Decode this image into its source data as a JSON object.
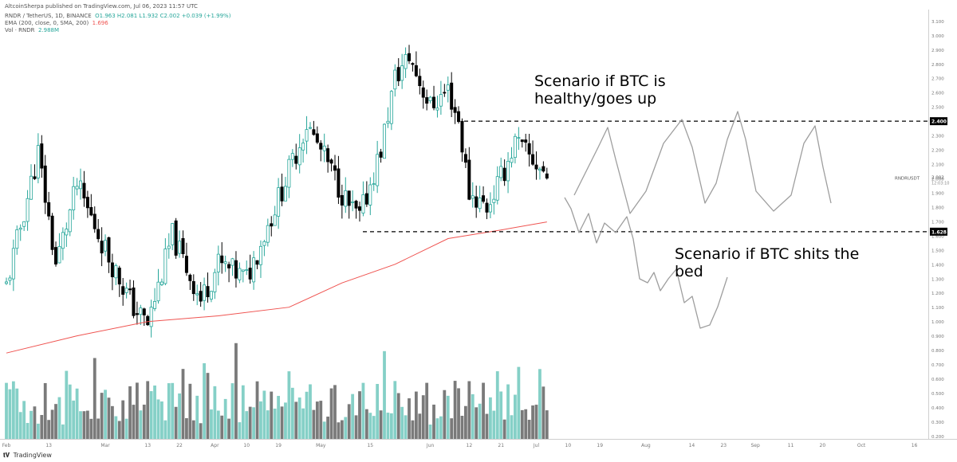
{
  "header": {
    "publisher": "AltcoinSherpa published on TradingView.com, Jul 06, 2023 11:57 UTC",
    "symbol": "RNDR / TetherUS, 1D, BINANCE",
    "ohlc": "O1.963 H2.081 L1.932 C2.002 +0.039 (+1.99%)",
    "ema_label": "EMA (200, close, 0, SMA, 200)",
    "ema_value": "1.696",
    "vol_label": "Vol · RNDR",
    "vol_value": "2.988M"
  },
  "annotations": {
    "top_line1": "Scenario if BTC is",
    "top_line2": "healthy/goes up",
    "bottom_line1": "Scenario if BTC shits the",
    "bottom_line2": "bed"
  },
  "footer": {
    "brand": "TradingView"
  },
  "chart_data": {
    "type": "candlestick",
    "title": "RNDR / TetherUS, 1D, BINANCE",
    "y_ticks": [
      "3.100",
      "3.000",
      "2.900",
      "2.800",
      "2.700",
      "2.600",
      "2.500",
      "2.400",
      "2.300",
      "2.200",
      "2.100",
      "2.000",
      "1.900",
      "1.800",
      "1.700",
      "1.600",
      "1.500",
      "1.400",
      "1.300",
      "1.200",
      "1.100",
      "1.000",
      "0.900",
      "0.800",
      "0.700",
      "0.600",
      "0.500",
      "0.400",
      "0.300",
      "0.200"
    ],
    "ylim": [
      0.18,
      3.18
    ],
    "x_ticks": [
      {
        "label": "Feb",
        "day": 0
      },
      {
        "label": "13",
        "day": 12
      },
      {
        "label": "Mar",
        "day": 28
      },
      {
        "label": "13",
        "day": 40
      },
      {
        "label": "22",
        "day": 49
      },
      {
        "label": "Apr",
        "day": 59
      },
      {
        "label": "10",
        "day": 68
      },
      {
        "label": "19",
        "day": 77
      },
      {
        "label": "May",
        "day": 89
      },
      {
        "label": "15",
        "day": 103
      },
      {
        "label": "Jun",
        "day": 120
      },
      {
        "label": "12",
        "day": 131
      },
      {
        "label": "21",
        "day": 140
      },
      {
        "label": "Jul",
        "day": 150
      },
      {
        "label": "10",
        "day": 159
      },
      {
        "label": "19",
        "day": 168
      },
      {
        "label": "Aug",
        "day": 181
      },
      {
        "label": "14",
        "day": 194
      },
      {
        "label": "23",
        "day": 203
      },
      {
        "label": "Sep",
        "day": 212
      },
      {
        "label": "11",
        "day": 222
      },
      {
        "label": "20",
        "day": 231
      },
      {
        "label": "Oct",
        "day": 242
      },
      {
        "label": "16",
        "day": 257
      }
    ],
    "price_labels": [
      {
        "label": "2.400",
        "value": 2.4
      },
      {
        "label": "1.628",
        "value": 1.628
      }
    ],
    "current_price": {
      "label": "RNDRUSDT",
      "value": "2.002",
      "countdown": "12:03:10"
    },
    "key_points": [
      {
        "day": 0,
        "price": 1.25
      },
      {
        "day": 9,
        "price": 2.18
      },
      {
        "day": 14,
        "price": 1.4
      },
      {
        "day": 20,
        "price": 1.95
      },
      {
        "day": 29,
        "price": 1.45
      },
      {
        "day": 36,
        "price": 1.1
      },
      {
        "day": 40,
        "price": 0.98
      },
      {
        "day": 47,
        "price": 1.6
      },
      {
        "day": 55,
        "price": 1.15
      },
      {
        "day": 60,
        "price": 1.4
      },
      {
        "day": 68,
        "price": 1.3
      },
      {
        "day": 80,
        "price": 2.05
      },
      {
        "day": 85,
        "price": 2.38
      },
      {
        "day": 92,
        "price": 2.05
      },
      {
        "day": 97,
        "price": 1.8
      },
      {
        "day": 100,
        "price": 1.72
      },
      {
        "day": 106,
        "price": 2.2
      },
      {
        "day": 110,
        "price": 2.7
      },
      {
        "day": 114,
        "price": 2.85
      },
      {
        "day": 120,
        "price": 2.5
      },
      {
        "day": 125,
        "price": 2.62
      },
      {
        "day": 128,
        "price": 2.4
      },
      {
        "day": 131,
        "price": 1.9
      },
      {
        "day": 136,
        "price": 1.8
      },
      {
        "day": 140,
        "price": 2.0
      },
      {
        "day": 144,
        "price": 2.25
      },
      {
        "day": 150,
        "price": 2.1
      },
      {
        "day": 153,
        "price": 2.02
      }
    ],
    "ema_points": [
      {
        "day": 0,
        "value": 0.78
      },
      {
        "day": 20,
        "value": 0.9
      },
      {
        "day": 40,
        "value": 1.0
      },
      {
        "day": 60,
        "value": 1.04
      },
      {
        "day": 80,
        "value": 1.1
      },
      {
        "day": 95,
        "value": 1.27
      },
      {
        "day": 110,
        "value": 1.4
      },
      {
        "day": 125,
        "value": 1.58
      },
      {
        "day": 140,
        "value": 1.64
      },
      {
        "day": 153,
        "value": 1.696
      }
    ],
    "volume_series": [
      {
        "name": "Vol · RNDR",
        "max_display": "2.988M"
      }
    ],
    "up_color": "#26a69a",
    "down_color": "#000000",
    "vol_up_color": "#85d0c7",
    "vol_down_color": "#7a7a7a",
    "ema_color": "#ef5350",
    "scenario_line_color": "#9e9e9e"
  }
}
